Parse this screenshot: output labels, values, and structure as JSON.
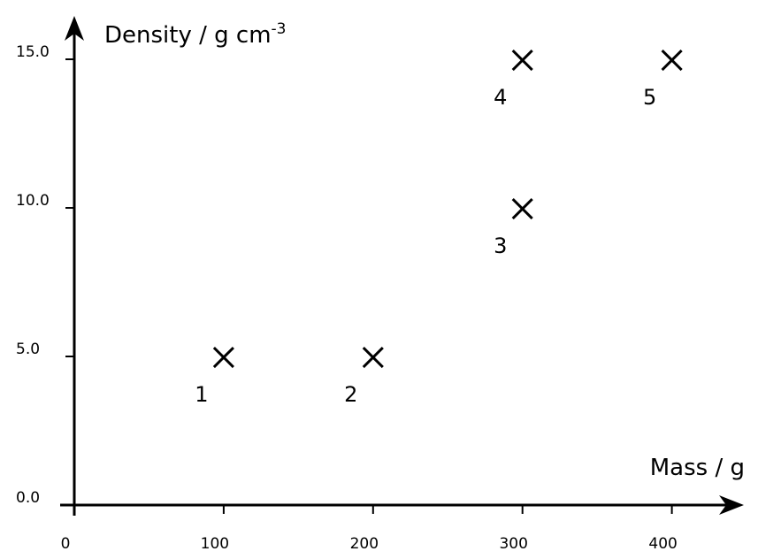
{
  "chart_data": {
    "type": "scatter",
    "x_label": "Mass / g",
    "y_label": "Density / g cm",
    "y_label_superscript": "-3",
    "x": [
      100,
      200,
      300,
      300,
      400
    ],
    "values": [
      5,
      5,
      10,
      15,
      15
    ],
    "point_labels": [
      "1",
      "2",
      "3",
      "4",
      "5"
    ],
    "color": "#000000",
    "xlim": [
      0,
      447
    ],
    "ylim": [
      0,
      16.4
    ],
    "xticks": [
      0,
      100,
      200,
      300,
      400
    ],
    "yticks": [
      {
        "value": 0,
        "label": "0.0"
      },
      {
        "value": 5,
        "label": "5.0"
      },
      {
        "value": 10,
        "label": "10.0"
      },
      {
        "value": 15,
        "label": "15.0"
      }
    ]
  }
}
